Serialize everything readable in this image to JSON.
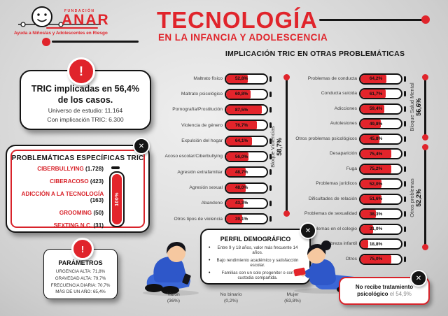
{
  "colors": {
    "red": "#e0242b",
    "bar_red": "#e3242b",
    "ink": "#141414",
    "gray": "#3d3d3d",
    "muted": "#8a8a8a",
    "blue": "#2e57c9"
  },
  "icons": {
    "close": "✕",
    "exclamation": "!"
  },
  "logo": {
    "fundacion": "FUNDACIÓN",
    "name": "ANAR",
    "tagline": "Ayuda a Niños/as y Adolescentes en Riesgo"
  },
  "header": {
    "title": "TECNOLOGÍA",
    "subtitle": "EN LA INFANCIA Y ADOLESCENCIA"
  },
  "charts_title": "IMPLICACIÓN TRIC EN OTRAS PROBLEMÁTICAS",
  "tric_box": {
    "line1": "TRIC implicadas en 56,4%",
    "line2": "de los casos.",
    "universe": "Universo de estudio: 11.164",
    "implication": "Con implicación TRIC: 6.300"
  },
  "specific_box": {
    "title": "PROBLEMÁTICAS ESPECÍFICAS TRIC",
    "items": [
      {
        "label": "CIBERBULLYING",
        "count": "(1.728)"
      },
      {
        "label": "CIBERACOSO",
        "count": "(423)"
      },
      {
        "label": "ADICCIÓN A LA TECNOLOGÍA",
        "count": "(163)"
      },
      {
        "label": "GROOMING",
        "count": "(50)"
      },
      {
        "label": "SEXTING N.C.",
        "count": "(31)"
      }
    ],
    "gauge_label": "100%"
  },
  "parameters_box": {
    "title": "PARÁMETROS",
    "lines": [
      "URGENCIA ALTA: 71,8%",
      "GRAVEDAD ALTA: 79,7%",
      "FRECUENCIA DIARIA: 70,7%",
      "MÁS DE UN AÑO: 65,4%"
    ]
  },
  "blocks": {
    "violence": {
      "label": "Bloque Violencias",
      "value": "58,7%"
    },
    "mental": {
      "label": "Bloque Salud Mental",
      "value": "56,6%"
    },
    "others": {
      "label": "Otros problemas",
      "value": "52,2%"
    }
  },
  "chart_data": [
    {
      "type": "bar",
      "title": "Implicación TRIC — Bloque Violencias",
      "block_label": "Bloque Violencias 58,7%",
      "categories": [
        "Maltrato físico",
        "Maltrato psicológico",
        "Pornografía/Prostitución",
        "Violencia de género",
        "Expulsión del hogar",
        "Acoso escolar/Ciberbullying",
        "Agresión extrafamiliar",
        "Agresión sexual",
        "Abandono",
        "Otros tipos de violencia"
      ],
      "values": [
        52.8,
        60.8,
        87.5,
        76.7,
        64.1,
        56.0,
        48.7,
        48.0,
        43.3,
        39.1
      ],
      "labels": [
        "52,8%",
        "60,8%",
        "87,5%",
        "76,7%",
        "64,1%",
        "56,0%",
        "48,7%",
        "48,0%",
        "43,3%",
        "39,1%"
      ],
      "unit": "%",
      "xlim": [
        0,
        100
      ],
      "grid": false,
      "legend": "none"
    },
    {
      "type": "bar",
      "title": "Implicación TRIC — Salud Mental y Otros problemas",
      "groups": [
        {
          "name": "Bloque Salud Mental",
          "total": "56,6%",
          "span": [
            0,
            4
          ]
        },
        {
          "name": "Otros problemas",
          "total": "52,2%",
          "span": [
            5,
            12
          ]
        }
      ],
      "categories": [
        "Problemas de conducta",
        "Conducta suicida",
        "Adicciones",
        "Autolesiones",
        "Otros problemas psicológicos",
        "Desaparición",
        "Fuga",
        "Problemas jurídicos",
        "Dificultades de relación",
        "Problemas de sexualidad",
        "Problemas en el colegio",
        "Pobreza infantil",
        "Otros"
      ],
      "values": [
        64.2,
        61.7,
        59.4,
        49.8,
        45.8,
        75.4,
        75.2,
        52.0,
        51.6,
        38.3,
        31.0,
        18.8,
        75.0
      ],
      "labels": [
        "64,2%",
        "61,7%",
        "59,4%",
        "49,8%",
        "45,8%",
        "75,4%",
        "75,2%",
        "52,0%",
        "51,6%",
        "38,3%",
        "31,0%",
        "18,8%",
        "75,0%"
      ],
      "unit": "%",
      "xlim": [
        0,
        100
      ],
      "grid": false,
      "legend": "none"
    }
  ],
  "profile_box": {
    "title": "PERFIL DEMOGRÁFICO",
    "bullets": [
      "Entre 9 y 18 años, valor más frecuente 14 años.",
      "Bajo rendimiento académico y satisfacción escolar.",
      "Familias con un solo progenitor o con custodia compartida."
    ]
  },
  "genders": [
    {
      "label": "Varón",
      "pct": "(36%)"
    },
    {
      "label": "No binario",
      "pct": "(0,2%)"
    },
    {
      "label": "Mujer",
      "pct": "(63,8%)"
    }
  ],
  "treatment_box": {
    "bold": "No recibe tratamiento psicológico",
    "suffix": "el 54,9%"
  }
}
